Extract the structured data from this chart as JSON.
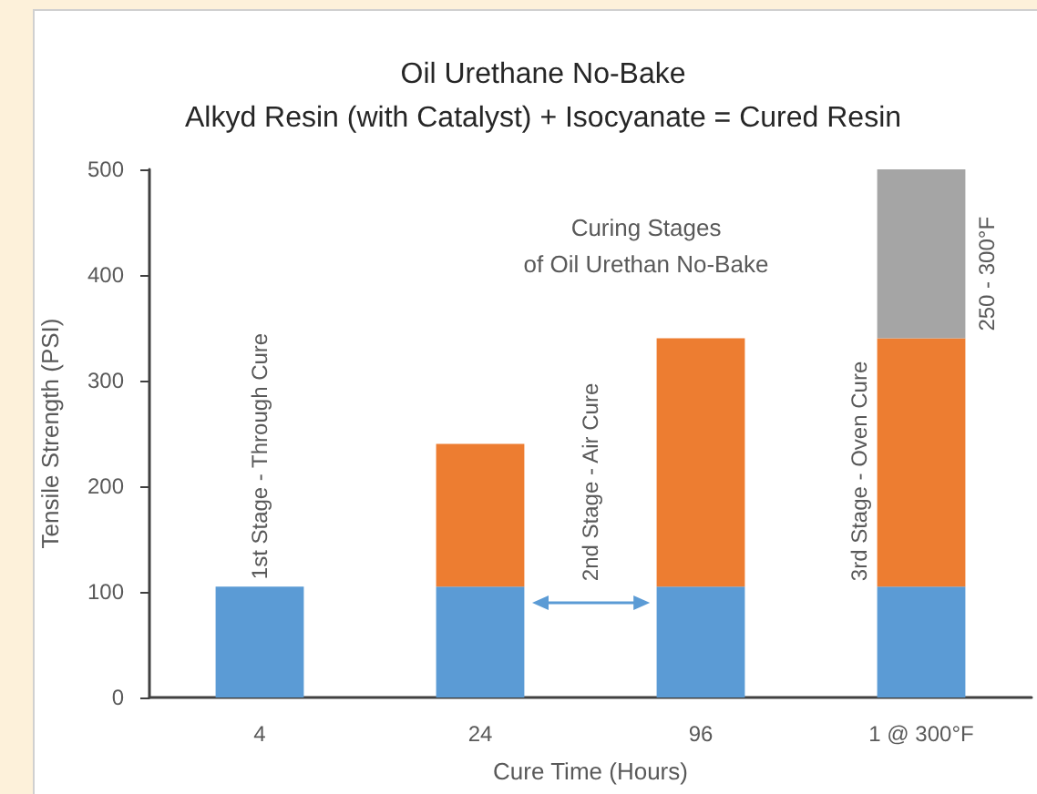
{
  "chart_data": {
    "type": "bar",
    "title": "Oil Urethane No-Bake",
    "subtitle": "Alkyd Resin (with Catalyst) + Isocyanate = Cured Resin",
    "xlabel": "Cure Time (Hours)",
    "ylabel": "Tensile Strength (PSI)",
    "categories": [
      "4",
      "24",
      "96",
      "1 @ 300°F"
    ],
    "stacked": true,
    "series": [
      {
        "color": "#5b9bd5",
        "values": [
          105,
          105,
          105,
          105
        ]
      },
      {
        "color": "#ed7d31",
        "values": [
          null,
          135,
          235,
          235
        ]
      },
      {
        "color": "#a5a5a5",
        "values": [
          null,
          null,
          null,
          160
        ]
      }
    ],
    "ylim": [
      0,
      500
    ],
    "yticks": [
      0,
      100,
      200,
      300,
      400,
      500
    ],
    "grid": false,
    "annotations": [
      "Curing Stages\nof Oil Urethan No-Bake",
      "1st Stage - Through Cure",
      "2nd Stage - Air Cure",
      "3rd Stage - Oven Cure",
      "250 - 300°F"
    ]
  }
}
